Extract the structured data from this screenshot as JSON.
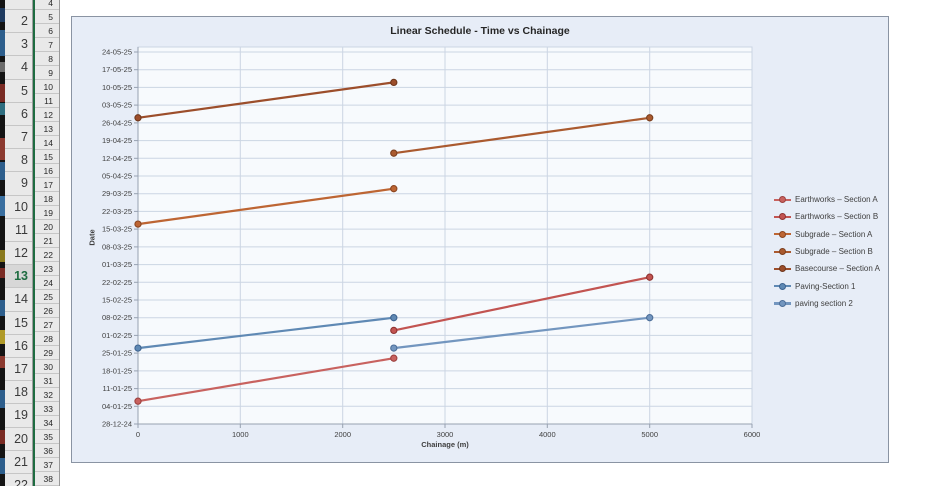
{
  "spreadsheet": {
    "left_row_headers": {
      "rows": [
        2,
        3,
        4,
        5,
        6,
        7,
        8,
        9,
        10,
        11,
        12,
        13,
        14,
        15,
        16,
        17,
        18,
        19,
        20,
        21,
        22
      ],
      "selected_row": 13
    },
    "right_row_headers": {
      "rows": [
        4,
        5,
        6,
        7,
        8,
        9,
        10,
        11,
        12,
        13,
        14,
        15,
        16,
        17,
        18,
        19,
        20,
        21,
        22,
        23,
        24,
        25,
        26,
        27,
        28,
        29,
        30,
        31,
        32,
        33,
        34,
        35,
        36,
        37,
        38
      ]
    }
  },
  "chart": {
    "colors": {
      "chart_bg": "#E7EDF7",
      "plot_bg": "#F7FAFD",
      "gridline": "#CBD5E3",
      "axis_line": "#97A1B0",
      "text": "#3F3F3F",
      "border": "#8A94A3"
    }
  },
  "chart_data": {
    "type": "line",
    "title": "Linear Schedule - Time vs Chainage",
    "xlabel": "Chainage (m)",
    "ylabel": "Date",
    "x_range": [
      0,
      6000
    ],
    "x_ticks": [
      0,
      1000,
      2000,
      3000,
      4000,
      5000,
      6000
    ],
    "y_range": [
      "28-12-24",
      "24-05-25"
    ],
    "y_tick_interval_days": 7,
    "y_ticks": [
      "24-05-25",
      "17-05-25",
      "10-05-25",
      "03-05-25",
      "26-04-25",
      "19-04-25",
      "12-04-25",
      "05-04-25",
      "29-03-25",
      "22-03-25",
      "15-03-25",
      "08-03-25",
      "01-03-25",
      "22-02-25",
      "15-02-25",
      "08-02-25",
      "01-02-25",
      "25-01-25",
      "18-01-25",
      "11-01-25",
      "04-01-25",
      "28-12-24"
    ],
    "date_format": "dd-mm-yy",
    "grid": true,
    "legend_position": "right",
    "series": [
      {
        "name": "Earthworks – Section A",
        "color": "#C8625F",
        "marker_edge": "#9C403E",
        "points": [
          {
            "chainage": 0,
            "date": "06-01-25"
          },
          {
            "chainage": 2500,
            "date": "23-01-25"
          }
        ]
      },
      {
        "name": "Earthworks – Section B",
        "color": "#C25451",
        "marker_edge": "#8F3331",
        "points": [
          {
            "chainage": 2500,
            "date": "03-02-25"
          },
          {
            "chainage": 5000,
            "date": "24-02-25"
          }
        ]
      },
      {
        "name": "Subgrade – Section A",
        "color": "#BD6533",
        "marker_edge": "#8A4520",
        "points": [
          {
            "chainage": 0,
            "date": "17-03-25"
          },
          {
            "chainage": 2500,
            "date": "31-03-25"
          }
        ]
      },
      {
        "name": "Subgrade – Section B",
        "color": "#AA5A2F",
        "marker_edge": "#7B3F1E",
        "points": [
          {
            "chainage": 2500,
            "date": "14-04-25"
          },
          {
            "chainage": 5000,
            "date": "28-04-25"
          }
        ]
      },
      {
        "name": "Basecourse – Section A",
        "color": "#9C4E2B",
        "marker_edge": "#6F371C",
        "points": [
          {
            "chainage": 0,
            "date": "28-04-25"
          },
          {
            "chainage": 2500,
            "date": "12-05-25"
          }
        ]
      },
      {
        "name": "Paving-Section 1",
        "color": "#5F89B4",
        "marker_edge": "#3D6390",
        "points": [
          {
            "chainage": 0,
            "date": "27-01-25"
          },
          {
            "chainage": 2500,
            "date": "08-02-25"
          }
        ]
      },
      {
        "name": "paving section 2",
        "color": "#7396BF",
        "marker_edge": "#4C6E99",
        "points": [
          {
            "chainage": 2500,
            "date": "27-01-25"
          },
          {
            "chainage": 5000,
            "date": "08-02-25"
          }
        ]
      }
    ]
  }
}
